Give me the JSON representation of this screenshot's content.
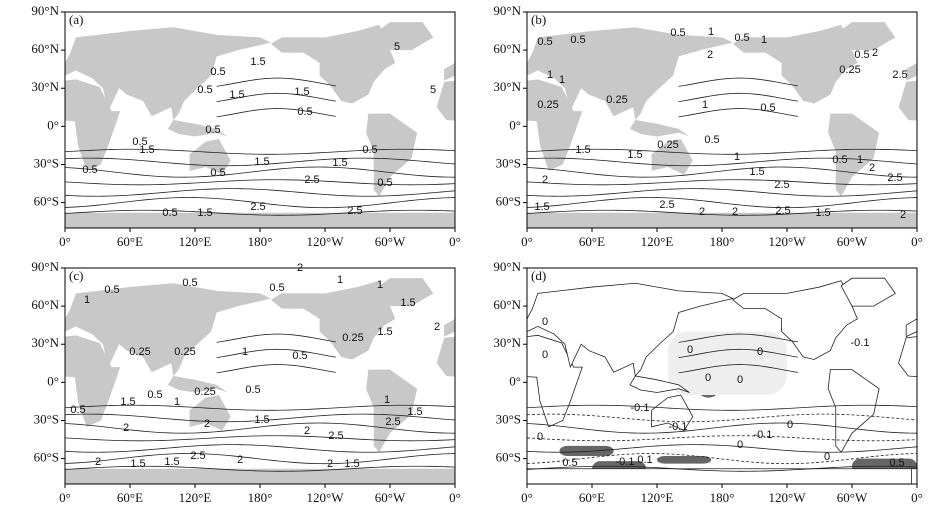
{
  "panels": [
    {
      "label": "(a)",
      "contour_labels": [
        "5",
        "0.5",
        "1.5",
        "0.5",
        "1.5",
        "1.5",
        "5",
        "0.5",
        "0.5",
        "0.5",
        "1.5",
        "0.5",
        "0.5",
        "1.5",
        "1.5",
        "2.5",
        "0.5",
        "0.5",
        "1.5",
        "2.5",
        "2.5",
        "0.5"
      ]
    },
    {
      "label": "(b)",
      "contour_labels": [
        "0.5",
        "0.5",
        "0.5",
        "1",
        "0.5",
        "1",
        "2",
        "0.5",
        "0.25",
        "2",
        "1",
        "1",
        "2.5",
        "0.25",
        "0.25",
        "1",
        "0.5",
        "0.5",
        "0.25",
        "1.5",
        "1.5",
        "1",
        "1.5",
        "2",
        "2.5",
        "0.5",
        "1",
        "2",
        "2.5",
        "1.5",
        "2.5",
        "2",
        "2",
        "2.5",
        "1.5",
        "2"
      ]
    },
    {
      "label": "(c)",
      "contour_labels": [
        "2",
        "1",
        "0.5",
        "0.5",
        "0.5",
        "1",
        "1.5",
        "2",
        "1",
        "0.25",
        "0.25",
        "1",
        "0.5",
        "0.25",
        "1.5",
        "0.25",
        "0.5",
        "1.5",
        "0.5",
        "1",
        "0.5",
        "2",
        "2",
        "1",
        "1.5",
        "1.5",
        "2",
        "2.5",
        "2.5",
        "2",
        "1.5",
        "1.5",
        "2.5",
        "2",
        "2",
        "1.5"
      ]
    },
    {
      "label": "(d)",
      "contour_labels": [
        "0",
        "0",
        "0",
        "0",
        "0",
        "-0.1",
        "0",
        "-0.1",
        "0",
        "-0.1",
        "-0.1",
        "0",
        "0.5",
        "-0.1",
        "0",
        "0.1",
        "0.5",
        "0"
      ]
    }
  ],
  "lat_ticks": [
    "90°N",
    "60°N",
    "30°N",
    "0°",
    "30°S",
    "60°S"
  ],
  "lon_ticks": [
    "0°",
    "60°E",
    "120°E",
    "180°",
    "120°W",
    "60°W",
    "0°"
  ]
}
